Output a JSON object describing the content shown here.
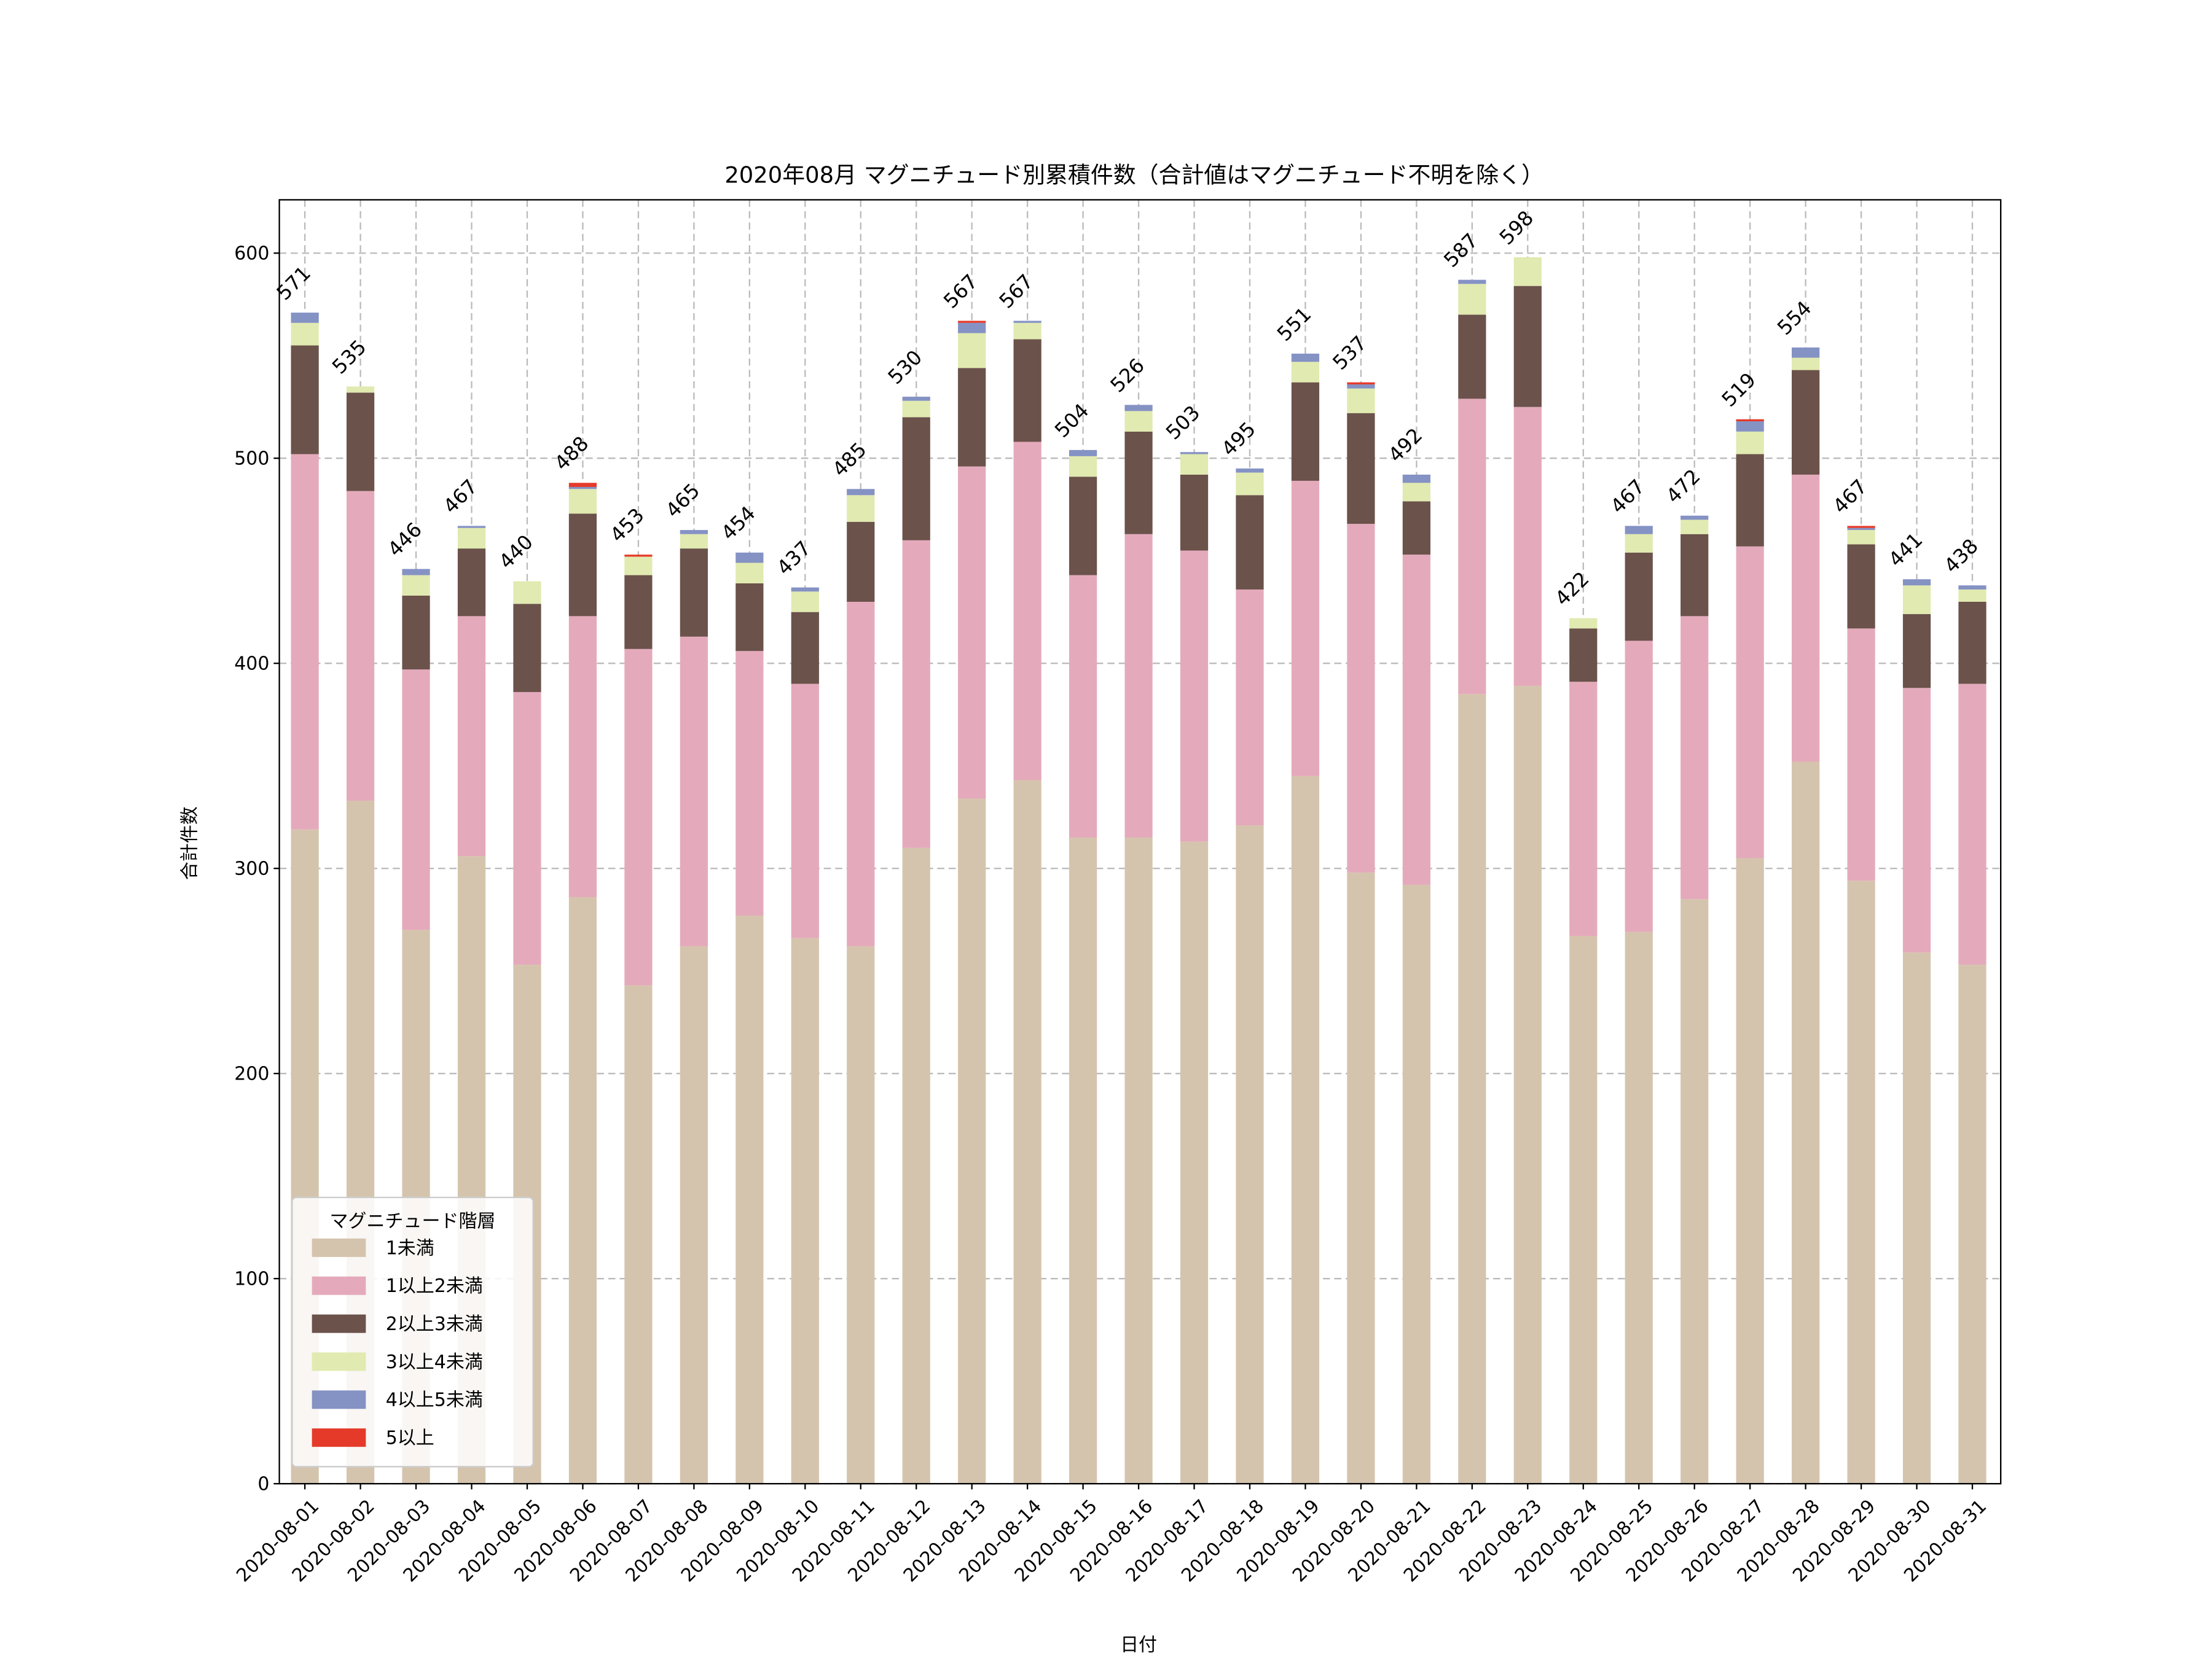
{
  "chart_data": {
    "type": "bar",
    "stacked": true,
    "title": "2020年08月 マグニチュード別累積件数（合計値はマグニチュード不明を除く）",
    "xlabel": "日付",
    "ylabel": "合計件数",
    "ylim": [
      0,
      626
    ],
    "yticks": [
      0,
      100,
      200,
      300,
      400,
      500,
      600
    ],
    "grid": true,
    "legend": {
      "title": "マグニチュード階層",
      "placement": "lower-left"
    },
    "categories": [
      "2020-08-01",
      "2020-08-02",
      "2020-08-03",
      "2020-08-04",
      "2020-08-05",
      "2020-08-06",
      "2020-08-07",
      "2020-08-08",
      "2020-08-09",
      "2020-08-10",
      "2020-08-11",
      "2020-08-12",
      "2020-08-13",
      "2020-08-14",
      "2020-08-15",
      "2020-08-16",
      "2020-08-17",
      "2020-08-18",
      "2020-08-19",
      "2020-08-20",
      "2020-08-21",
      "2020-08-22",
      "2020-08-23",
      "2020-08-24",
      "2020-08-25",
      "2020-08-26",
      "2020-08-27",
      "2020-08-28",
      "2020-08-29",
      "2020-08-30",
      "2020-08-31"
    ],
    "series": [
      {
        "name": "1未満",
        "color": "#d5c4ad",
        "values": [
          319,
          333,
          270,
          306,
          253,
          286,
          243,
          262,
          277,
          266,
          262,
          310,
          334,
          343,
          315,
          315,
          313,
          321,
          345,
          298,
          292,
          385,
          389,
          267,
          269,
          285,
          305,
          352,
          294,
          259,
          253
        ]
      },
      {
        "name": "1以上2未満",
        "color": "#e4aabb",
        "values": [
          183,
          151,
          127,
          117,
          133,
          137,
          164,
          151,
          129,
          124,
          168,
          150,
          162,
          165,
          128,
          148,
          142,
          115,
          144,
          170,
          161,
          144,
          136,
          124,
          142,
          138,
          152,
          140,
          123,
          129,
          137
        ]
      },
      {
        "name": "2以上3未満",
        "color": "#6b524b",
        "values": [
          53,
          48,
          36,
          33,
          43,
          50,
          36,
          43,
          33,
          35,
          39,
          60,
          48,
          50,
          48,
          50,
          37,
          46,
          48,
          54,
          26,
          41,
          59,
          26,
          43,
          40,
          45,
          51,
          41,
          36,
          40
        ]
      },
      {
        "name": "3以上4未満",
        "color": "#e1eab0",
        "values": [
          11,
          3,
          10,
          10,
          11,
          12,
          9,
          7,
          10,
          10,
          13,
          8,
          17,
          8,
          10,
          10,
          10,
          11,
          10,
          12,
          9,
          15,
          14,
          5,
          9,
          7,
          11,
          6,
          7,
          14,
          6
        ]
      },
      {
        "name": "4以上5未満",
        "color": "#8592c4",
        "values": [
          5,
          0,
          3,
          1,
          0,
          1,
          0,
          2,
          5,
          2,
          3,
          2,
          5,
          1,
          3,
          3,
          1,
          2,
          4,
          2,
          4,
          2,
          0,
          0,
          4,
          2,
          5,
          5,
          1,
          3,
          2
        ]
      },
      {
        "name": "5以上",
        "color": "#e53a2a",
        "values": [
          0,
          0,
          0,
          0,
          0,
          2,
          1,
          0,
          0,
          0,
          0,
          0,
          1,
          0,
          0,
          0,
          0,
          0,
          0,
          1,
          0,
          0,
          0,
          0,
          0,
          0,
          1,
          0,
          1,
          0,
          0
        ]
      }
    ],
    "totals": [
      "571",
      "535",
      "446",
      "467",
      "440",
      "488",
      "453",
      "465",
      "454",
      "437",
      "485",
      "530",
      "567",
      "567",
      "504",
      "526",
      "503",
      "495",
      "551",
      "537",
      "492",
      "587",
      "598",
      "422",
      "467",
      "472",
      "519",
      "554",
      "467",
      "441",
      "438"
    ]
  }
}
